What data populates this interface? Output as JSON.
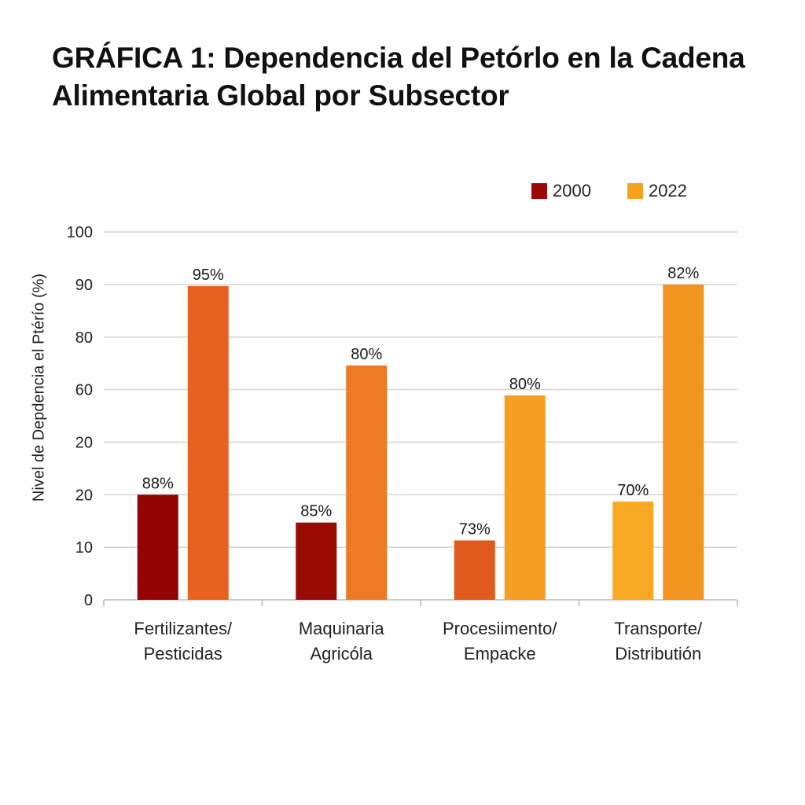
{
  "title": "GRÁFICA 1: Dependencia del Petórlo en la Cadena Alimentaria Global por Subsector",
  "colors": {
    "legend_2000": "#9a0a05",
    "legend_2022": "#f6a21f",
    "grid": "#d6d6d6",
    "axis": "#b8b8b8"
  },
  "chart_data": {
    "type": "bar",
    "title": "GRÁFICA 1: Dependencia del Petórlo en la Cadena Alimentaria Global por Subsector",
    "xlabel": "",
    "ylabel": "Nivel de Depdencia el Ptérío (%)",
    "y_tick_labels": [
      "0",
      "10",
      "20",
      "20",
      "60",
      "80",
      "90",
      "100"
    ],
    "y_tick_note": "tick labels are evenly spaced on the axis; bar heights are given in tick-step units (0-7) as drawn",
    "ylim_steps": [
      0,
      7
    ],
    "grid": true,
    "legend": {
      "position": "top-right",
      "entries": [
        "2000",
        "2022"
      ]
    },
    "categories": [
      [
        "Fertilizantes/",
        "Pesticidas"
      ],
      [
        "Maquinaria",
        "Agricóla"
      ],
      [
        "Procesiimento/",
        "Empacke"
      ],
      [
        "Transporte/",
        "Distributión"
      ]
    ],
    "series": [
      {
        "name": "2000",
        "labels": [
          "88%",
          "85%",
          "73%",
          "70%"
        ],
        "heights_in_steps": [
          2.0,
          1.47,
          1.13,
          1.87
        ],
        "colors": [
          "#930303",
          "#990c05",
          "#e05a1e",
          "#f8a823"
        ]
      },
      {
        "name": "2022",
        "labels": [
          "95%",
          "80%",
          "80%",
          "82%"
        ],
        "heights_in_steps": [
          5.97,
          4.46,
          3.89,
          6.0
        ],
        "colors": [
          "#e8621f",
          "#ee7a25",
          "#f59e23",
          "#f29420"
        ]
      }
    ]
  }
}
